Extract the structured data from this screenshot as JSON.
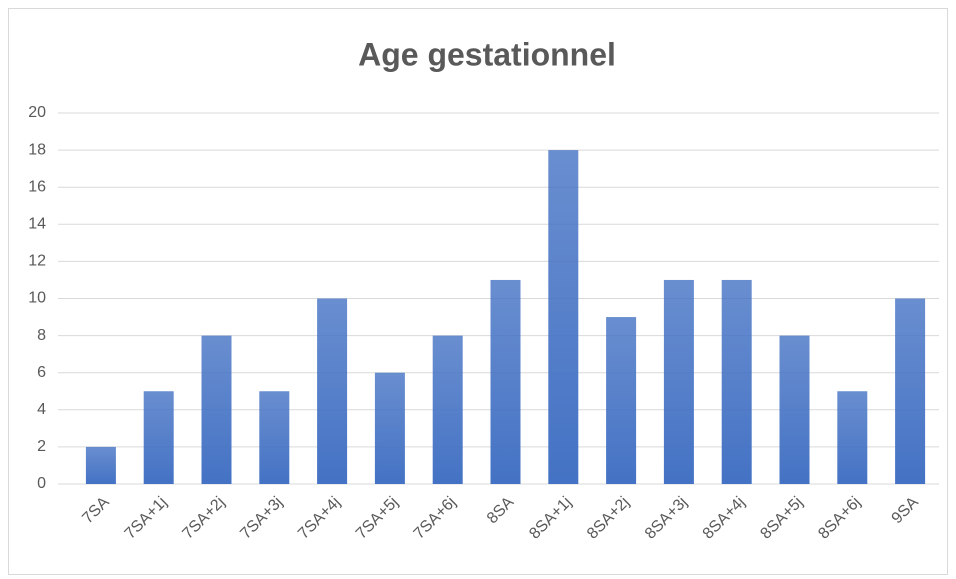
{
  "chart_data": {
    "type": "bar",
    "title": "Age gestationnel",
    "categories": [
      "7SA",
      "7SA+1j",
      "7SA+2j",
      "7SA+3j",
      "7SA+4j",
      "7SA+5j",
      "7SA+6j",
      "8SA",
      "8SA+1j",
      "8SA+2j",
      "8SA+3j",
      "8SA+4j",
      "8SA+5j",
      "8SA+6j",
      "9SA"
    ],
    "values": [
      2,
      5,
      8,
      5,
      10,
      6,
      8,
      11,
      18,
      9,
      11,
      11,
      8,
      5,
      10
    ],
    "color": "#4472c4",
    "ylim": [
      0,
      20
    ],
    "yticks": [
      0,
      2,
      4,
      6,
      8,
      10,
      12,
      14,
      16,
      18,
      20
    ],
    "grid": true
  }
}
